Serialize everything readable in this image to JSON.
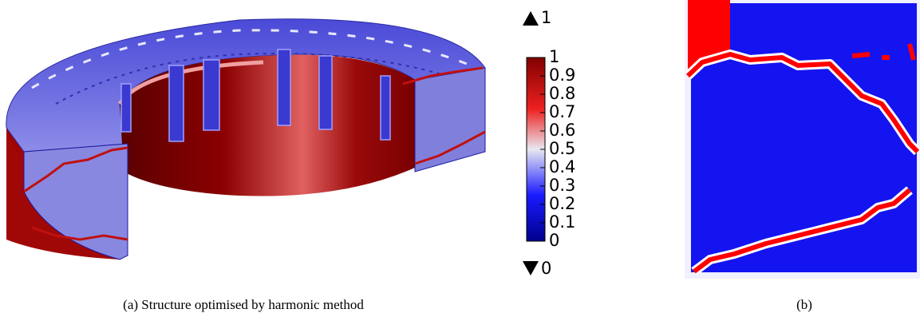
{
  "figure_a": {
    "colorbar": {
      "max": 1,
      "min": 0,
      "ticks": [
        1,
        0.9,
        0.8,
        0.7,
        0.6,
        0.5,
        0.4,
        0.3,
        0.2,
        0.1,
        0
      ]
    },
    "caption": "(a) Structure optimised by harmonic method"
  },
  "figure_b": {
    "caption": "(b)"
  }
}
